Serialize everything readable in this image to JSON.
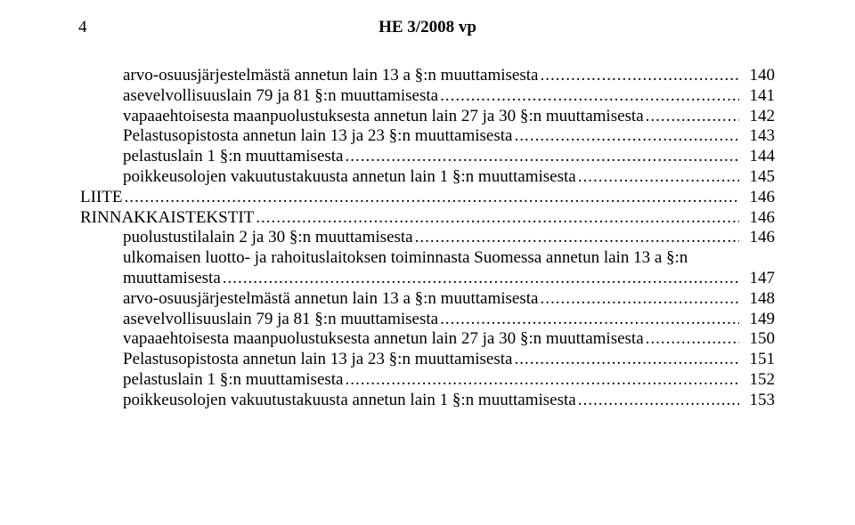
{
  "page_number": "4",
  "header": "HE 3/2008 vp",
  "font": {
    "family": "Times New Roman",
    "size_pt": 14,
    "color": "#000000"
  },
  "background_color": "#ffffff",
  "leaders_char": ".",
  "entries": [
    {
      "indent": 1,
      "lines": [
        "arvo-osuusjärjestelmästä annetun lain 13 a §:n muuttamisesta"
      ],
      "page": "140"
    },
    {
      "indent": 1,
      "lines": [
        "asevelvollisuuslain 79 ja 81 §:n muuttamisesta"
      ],
      "page": "141"
    },
    {
      "indent": 1,
      "lines": [
        "vapaaehtoisesta maanpuolustuksesta annetun lain 27 ja 30 §:n muuttamisesta"
      ],
      "page": "142"
    },
    {
      "indent": 1,
      "lines": [
        "Pelastusopistosta annetun lain 13 ja 23 §:n muuttamisesta"
      ],
      "page": "143"
    },
    {
      "indent": 1,
      "lines": [
        "pelastuslain 1 §:n muuttamisesta"
      ],
      "page": "144"
    },
    {
      "indent": 1,
      "lines": [
        "poikkeusolojen vakuutustakuusta annetun lain 1 §:n muuttamisesta"
      ],
      "page": "145"
    },
    {
      "indent": 0,
      "lines": [
        "LIITE"
      ],
      "page": "146"
    },
    {
      "indent": 0,
      "lines": [
        "RINNAKKAISTEKSTIT"
      ],
      "page": "146"
    },
    {
      "indent": 1,
      "lines": [
        "puolustustilalain 2 ja 30 §:n muuttamisesta"
      ],
      "page": "146"
    },
    {
      "indent": 1,
      "lines": [
        "ulkomaisen luotto- ja rahoituslaitoksen toiminnasta Suomessa annetun lain 13 a §:n",
        "muuttamisesta"
      ],
      "page": "147"
    },
    {
      "indent": 1,
      "lines": [
        "arvo-osuusjärjestelmästä annetun lain 13 a §:n muuttamisesta"
      ],
      "page": "148"
    },
    {
      "indent": 1,
      "lines": [
        "asevelvollisuuslain 79 ja 81 §:n muuttamisesta"
      ],
      "page": "149"
    },
    {
      "indent": 1,
      "lines": [
        "vapaaehtoisesta maanpuolustuksesta annetun lain 27 ja 30 §:n muuttamisesta"
      ],
      "page": "150"
    },
    {
      "indent": 1,
      "lines": [
        "Pelastusopistosta annetun lain 13 ja 23 §:n muuttamisesta"
      ],
      "page": "151"
    },
    {
      "indent": 1,
      "lines": [
        "pelastuslain 1 §:n muuttamisesta"
      ],
      "page": "152"
    },
    {
      "indent": 1,
      "lines": [
        "poikkeusolojen vakuutustakuusta annetun lain 1 §:n muuttamisesta"
      ],
      "page": "153"
    }
  ]
}
